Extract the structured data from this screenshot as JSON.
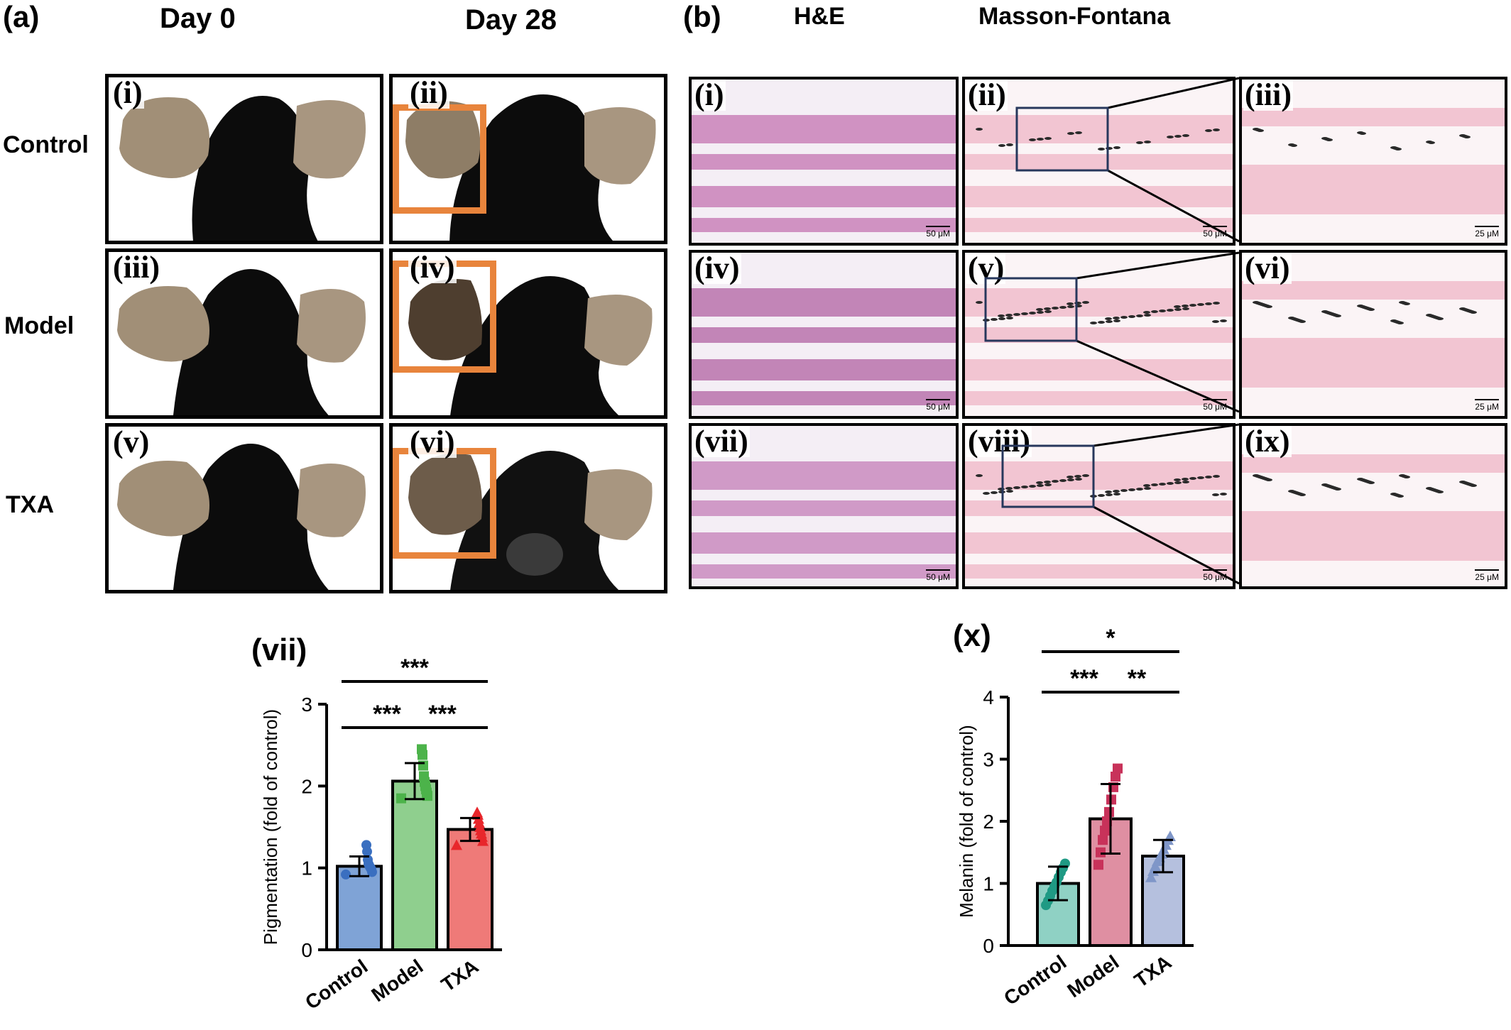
{
  "panel_a": {
    "label": "(a)",
    "col_headers": [
      "Day 0",
      "Day 28"
    ],
    "row_labels": [
      "Control",
      "Model",
      "TXA"
    ],
    "photo_labels": [
      "(i)",
      "(ii)",
      "(iii)",
      "(iv)",
      "(v)",
      "(vi)"
    ],
    "highlight_color": "#e8843c"
  },
  "panel_b": {
    "label": "(b)",
    "col_headers": [
      "H&E",
      "Masson-Fontana"
    ],
    "image_labels": [
      "(i)",
      "(ii)",
      "(iii)",
      "(iv)",
      "(v)",
      "(vi)",
      "(vii)",
      "(viii)",
      "(ix)"
    ],
    "scale_bars": [
      "50 μM",
      "50 μM",
      "25 μM",
      "50 μM",
      "50 μM",
      "25 μM",
      "50 μM",
      "50 μM",
      "25 μM"
    ]
  },
  "chart_data": [
    {
      "panel": "(vii)",
      "type": "bar",
      "categories": [
        "Control",
        "Model",
        "TXA"
      ],
      "values": [
        1.02,
        2.06,
        1.47
      ],
      "errors": [
        0.12,
        0.22,
        0.14
      ],
      "colors": [
        "#7fa3d6",
        "#8fcf8e",
        "#ef7a78"
      ],
      "point_colors": [
        "#3a6fc0",
        "#4cb34a",
        "#e8262b"
      ],
      "markers": [
        "circle",
        "square",
        "triangle"
      ],
      "points": [
        [
          0.92,
          0.95,
          0.98,
          1.0,
          1.01,
          1.03,
          1.05,
          1.1,
          1.2,
          1.28
        ],
        [
          1.85,
          1.88,
          1.92,
          1.96,
          2.0,
          2.05,
          2.12,
          2.25,
          2.38,
          2.45
        ],
        [
          1.28,
          1.33,
          1.38,
          1.42,
          1.46,
          1.5,
          1.55,
          1.6,
          1.65,
          1.68
        ]
      ],
      "ylabel": "Pigmentation (fold of control)",
      "ylim": [
        0,
        3
      ],
      "yticks": [
        "0",
        "1",
        "2",
        "3"
      ],
      "significance": [
        {
          "from": 0,
          "to": 1,
          "text": "***"
        },
        {
          "from": 1,
          "to": 2,
          "text": "***"
        },
        {
          "from": 0,
          "to": 2,
          "text": "***"
        }
      ]
    },
    {
      "panel": "(x)",
      "type": "bar",
      "categories": [
        "Control",
        "Model",
        "TXA"
      ],
      "values": [
        1.0,
        2.04,
        1.44
      ],
      "errors": [
        0.27,
        0.56,
        0.26
      ],
      "colors": [
        "#8fd1c4",
        "#df8fa2",
        "#b5c0de"
      ],
      "point_colors": [
        "#1f9a84",
        "#c8325a",
        "#7f96c8"
      ],
      "markers": [
        "circle",
        "square",
        "triangle"
      ],
      "points": [
        [
          0.65,
          0.72,
          0.8,
          0.88,
          0.95,
          1.02,
          1.1,
          1.18,
          1.25,
          1.32
        ],
        [
          1.3,
          1.5,
          1.7,
          1.85,
          2.0,
          2.15,
          2.35,
          2.55,
          2.72,
          2.85
        ],
        [
          1.1,
          1.2,
          1.28,
          1.36,
          1.42,
          1.48,
          1.55,
          1.62,
          1.7,
          1.76
        ]
      ],
      "ylabel": "Melanin (fold of control)",
      "ylim": [
        0,
        4
      ],
      "yticks": [
        "0",
        "1",
        "2",
        "3",
        "4"
      ],
      "significance": [
        {
          "from": 0,
          "to": 1,
          "text": "***"
        },
        {
          "from": 1,
          "to": 2,
          "text": "**"
        },
        {
          "from": 0,
          "to": 2,
          "text": "*"
        }
      ]
    }
  ]
}
